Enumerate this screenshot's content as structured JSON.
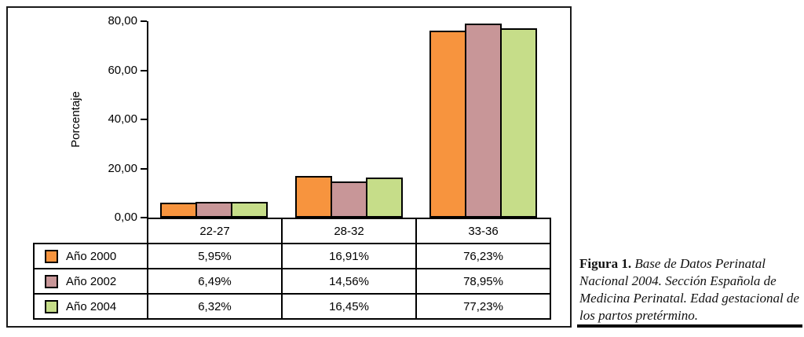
{
  "figure": {
    "caption": {
      "label": "Figura 1.",
      "text": " Base de Datos Perinatal Nacional 2004. Sección Española de Medicina Perinatal. Edad gestacional de los partos pretérmino."
    }
  },
  "chart_data": {
    "type": "bar",
    "title": "",
    "xlabel": "",
    "ylabel": "Porcentaje",
    "ylim": [
      0,
      80
    ],
    "yticks": [
      0,
      20,
      40,
      60,
      80
    ],
    "ytick_labels": [
      "0,00",
      "20,00",
      "40,00",
      "60,00",
      "80,00"
    ],
    "grid": false,
    "legend_position": "table-left",
    "categories": [
      "22-27",
      "28-32",
      "33-36"
    ],
    "series": [
      {
        "name": "Año 2000",
        "color": "#F7943E",
        "values": [
          5.95,
          16.91,
          76.23
        ],
        "value_labels": [
          "5,95%",
          "16,91%",
          "76,23%"
        ]
      },
      {
        "name": "Año 2002",
        "color": "#C89698",
        "values": [
          6.49,
          14.56,
          78.95
        ],
        "value_labels": [
          "6,49%",
          "14,56%",
          "78,95%"
        ]
      },
      {
        "name": "Año 2004",
        "color": "#C6DD89",
        "values": [
          6.32,
          16.45,
          77.23
        ],
        "value_labels": [
          "6,32%",
          "16,45%",
          "77,23%"
        ]
      }
    ]
  }
}
